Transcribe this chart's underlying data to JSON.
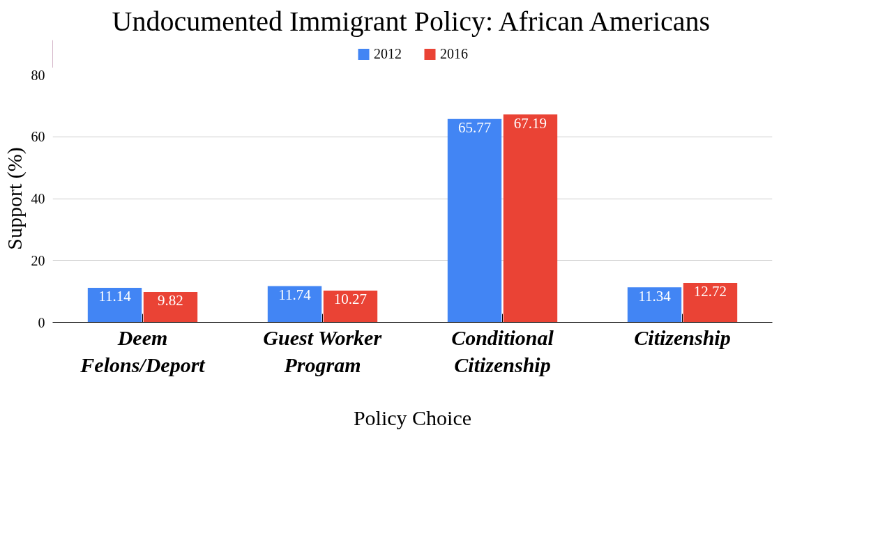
{
  "chart_data": {
    "type": "bar",
    "title": "Undocumented Immigrant Policy: African Americans",
    "xlabel": "Policy Choice",
    "ylabel": "Support (%)",
    "categories": [
      "Deem Felons/Deport",
      "Guest Worker Program",
      "Conditional Citizenship",
      "Citizenship"
    ],
    "series": [
      {
        "name": "2012",
        "color": "#4285f4",
        "values": [
          11.14,
          11.74,
          65.77,
          11.34
        ]
      },
      {
        "name": "2016",
        "color": "#ea4335",
        "values": [
          9.82,
          10.27,
          67.19,
          12.72
        ]
      }
    ],
    "ylim": [
      0,
      80
    ],
    "yticks": [
      0,
      20,
      40,
      60,
      80
    ],
    "grid": "y",
    "legend": "top",
    "data_labels": true
  }
}
